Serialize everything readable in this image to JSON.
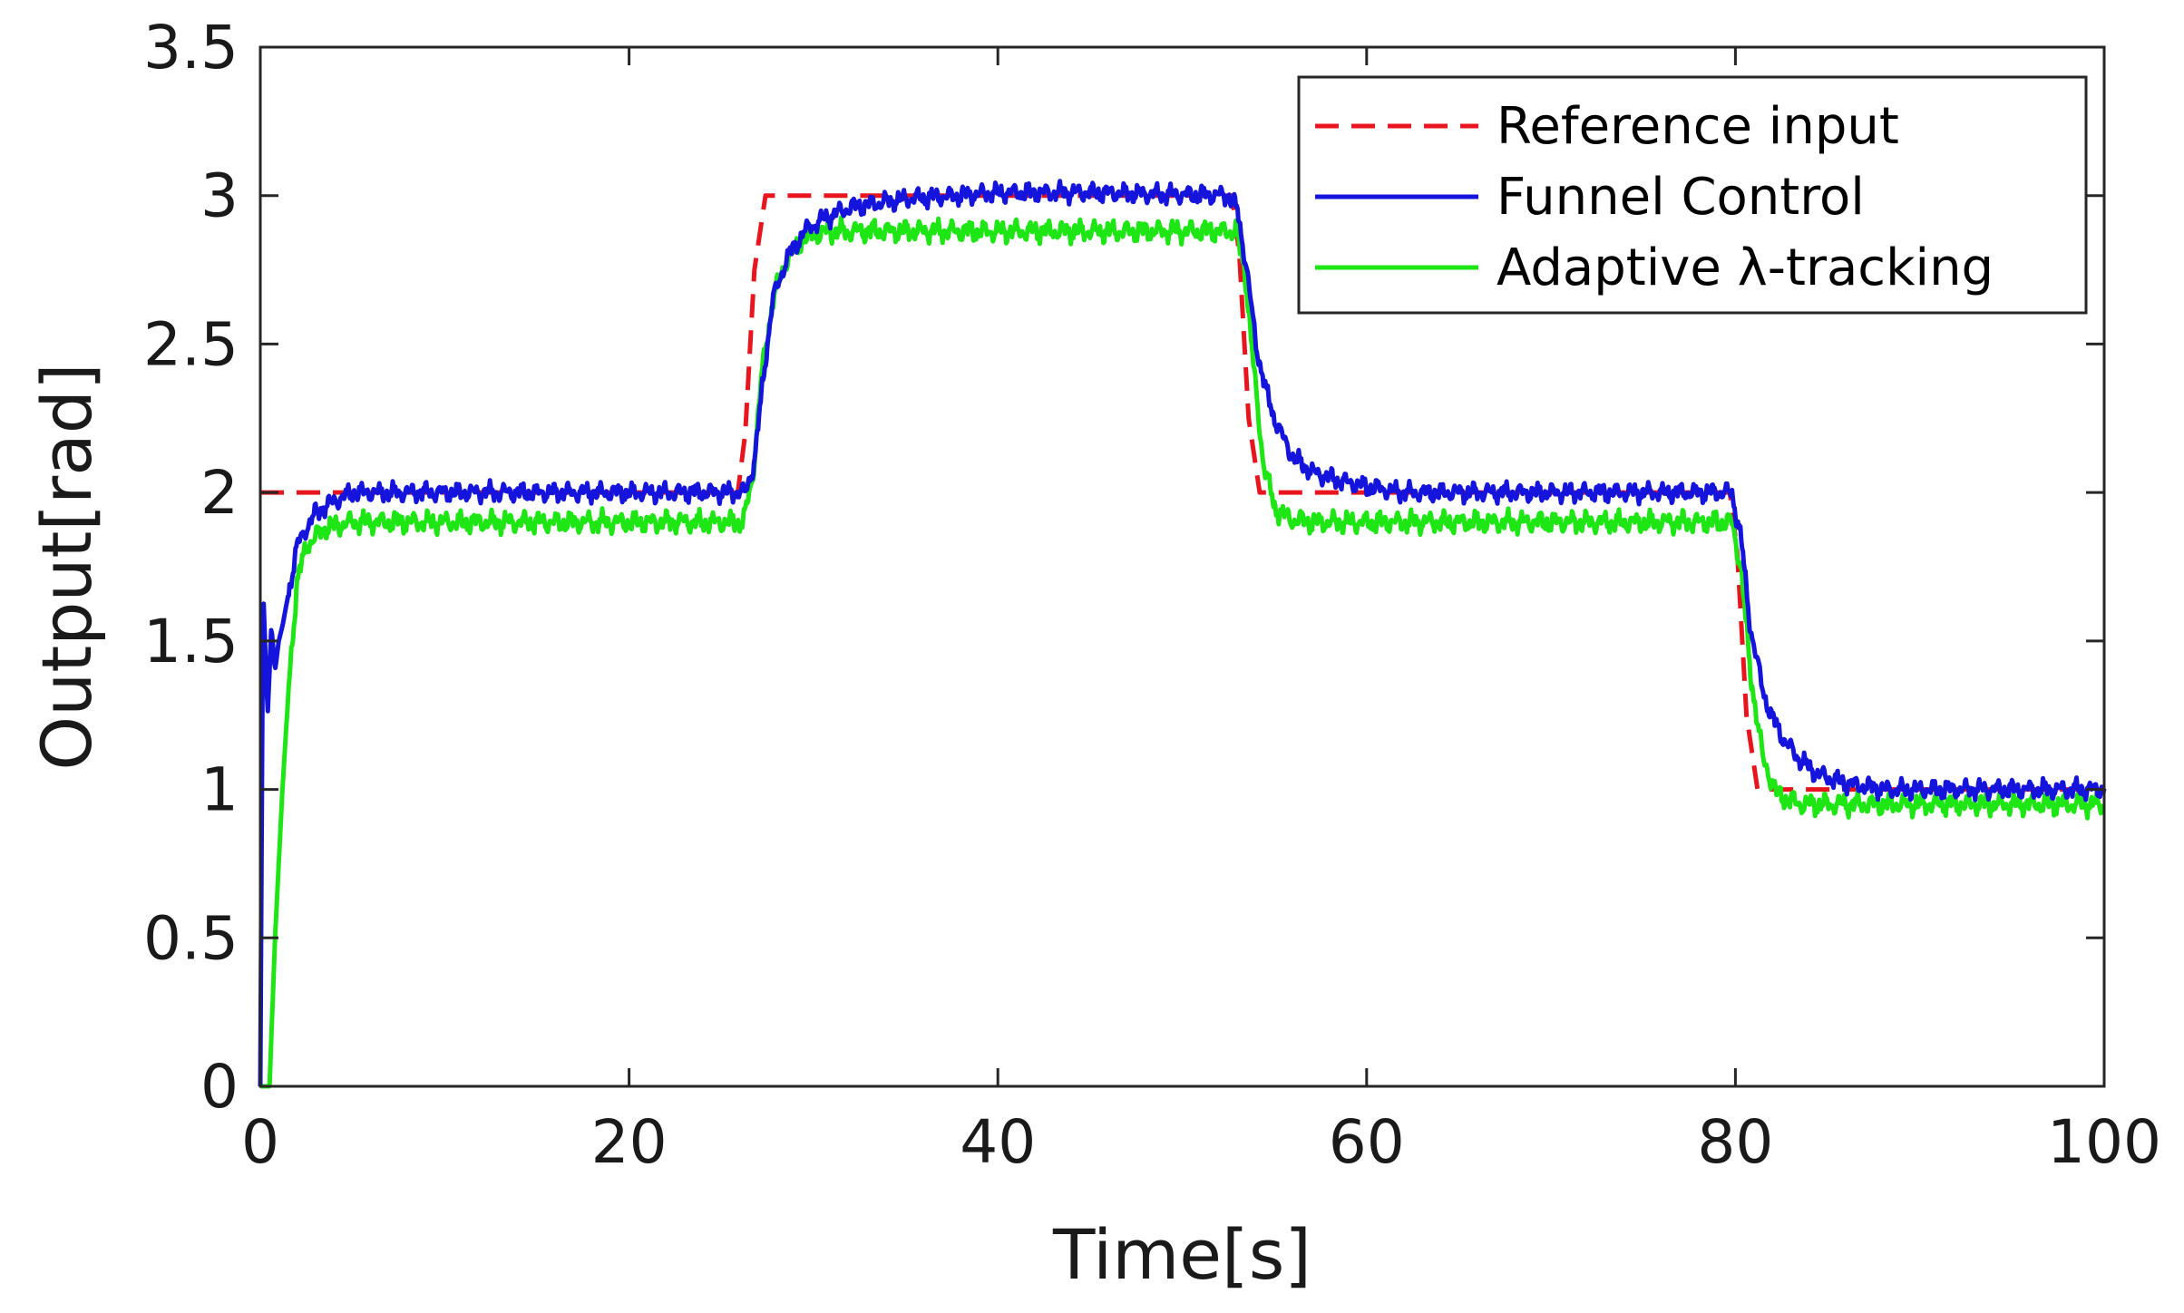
{
  "chart_data": {
    "type": "line",
    "title": "",
    "xlabel": "Time[s]",
    "ylabel": "Output[rad]",
    "xlim": [
      0,
      100
    ],
    "ylim": [
      0,
      3.5
    ],
    "grid": false,
    "legend_position": "top-right",
    "xticks": [
      0,
      20,
      40,
      60,
      80,
      100
    ],
    "xtick_labels": [
      "0",
      "20",
      "40",
      "60",
      "80",
      "100"
    ],
    "yticks": [
      0,
      0.5,
      1,
      1.5,
      2,
      2.5,
      3,
      3.5
    ],
    "ytick_labels": [
      "0",
      "0.5",
      "1",
      "1.5",
      "2",
      "2.5",
      "3",
      "3.5"
    ],
    "series": [
      {
        "name": "Reference input",
        "legend_label": "Reference input",
        "color": "#e8141e",
        "style": "dashed",
        "x": [
          0,
          25.9,
          26.3,
          26.8,
          27.4,
          52.7,
          53.1,
          53.6,
          54.2,
          79.7,
          80.1,
          80.6,
          81.2,
          100
        ],
        "y": [
          2.0,
          2.0,
          2.2,
          2.75,
          3.0,
          3.0,
          2.8,
          2.25,
          2.0,
          2.0,
          1.8,
          1.25,
          1.0,
          1.0
        ]
      },
      {
        "name": "Funnel Control",
        "legend_label": "Funnel Control",
        "color": "#1414dc",
        "style": "solid",
        "noise_amplitude": 0.035,
        "x": [
          0,
          0.15,
          0.4,
          0.6,
          0.8,
          1.0,
          1.2,
          1.5,
          2.0,
          2.5,
          3.0,
          4.0,
          5.0,
          26.3,
          26.8,
          27.3,
          27.8,
          28.5,
          29.5,
          30.5,
          32,
          35,
          38,
          40,
          45,
          52.5,
          53.0,
          53.5,
          54.0,
          54.5,
          55.0,
          55.5,
          56.0,
          57.0,
          58.5,
          60,
          62,
          79.8,
          80.3,
          80.8,
          81.5,
          82.0,
          82.7,
          83.5,
          84.5,
          86,
          88,
          100
        ],
        "y": [
          0,
          1.68,
          1.25,
          1.55,
          1.4,
          1.5,
          1.55,
          1.65,
          1.82,
          1.88,
          1.93,
          1.97,
          2.0,
          2.0,
          2.1,
          2.4,
          2.65,
          2.78,
          2.88,
          2.92,
          2.96,
          2.99,
          3.0,
          3.01,
          3.01,
          3.0,
          2.95,
          2.75,
          2.5,
          2.35,
          2.25,
          2.18,
          2.12,
          2.07,
          2.04,
          2.02,
          2.0,
          2.0,
          1.85,
          1.55,
          1.33,
          1.24,
          1.16,
          1.1,
          1.05,
          1.02,
          1.0,
          1.0
        ]
      },
      {
        "name": "Adaptive λ-tracking",
        "legend_label": "Adaptive λ-tracking",
        "color": "#1ee614",
        "style": "solid",
        "noise_amplitude": 0.04,
        "x": [
          0,
          0.5,
          0.8,
          1.2,
          1.6,
          2.0,
          2.5,
          3.0,
          3.5,
          5,
          26.2,
          26.7,
          27.2,
          27.8,
          28.5,
          29.5,
          31,
          52.9,
          53.4,
          53.9,
          54.4,
          55.0,
          55.8,
          57,
          79.8,
          80.3,
          80.8,
          81.5,
          82.3,
          83.5,
          100
        ],
        "y": [
          0,
          0.0,
          0.5,
          1.0,
          1.4,
          1.7,
          1.82,
          1.85,
          1.88,
          1.9,
          1.9,
          2.05,
          2.4,
          2.65,
          2.78,
          2.86,
          2.88,
          2.88,
          2.75,
          2.4,
          2.1,
          1.95,
          1.91,
          1.9,
          1.9,
          1.75,
          1.4,
          1.1,
          0.98,
          0.95,
          0.95
        ]
      }
    ]
  }
}
